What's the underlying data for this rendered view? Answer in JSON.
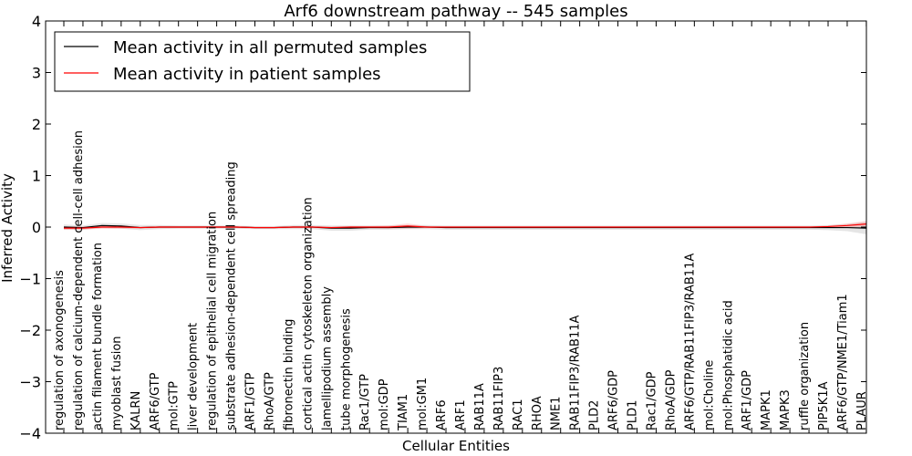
{
  "chart_data": {
    "type": "line",
    "title": "Arf6 downstream pathway -- 545 samples",
    "xlabel": "Cellular Entities",
    "ylabel": "Inferred Activity",
    "ylim": [
      -4,
      4
    ],
    "yticks": [
      -4,
      -3,
      -2,
      -1,
      0,
      1,
      2,
      3,
      4
    ],
    "ytick_labels": [
      "−4",
      "−3",
      "−2",
      "−1",
      "0",
      "1",
      "2",
      "3",
      "4"
    ],
    "legend_position": "top-left",
    "grid": false,
    "categories": [
      "regulation of axonogenesis",
      "regulation of calcium-dependent cell-cell adhesion",
      "actin filament bundle formation",
      "myoblast fusion",
      "KALRN",
      "ARF6/GTP",
      "mol:GTP",
      "liver development",
      "regulation of epithelial cell migration",
      "substrate adhesion-dependent cell spreading",
      "ARF1/GTP",
      "RhoA/GTP",
      "fibronectin binding",
      "cortical actin cytoskeleton organization",
      "lamellipodium assembly",
      "tube morphogenesis",
      "Rac1/GTP",
      "mol:GDP",
      "TIAM1",
      "mol:GM1",
      "ARF6",
      "ARF1",
      "RAB11A",
      "RAB11FIP3",
      "RAC1",
      "RHOA",
      "NME1",
      "RAB11FIP3/RAB11A",
      "PLD2",
      "ARF6/GDP",
      "PLD1",
      "Rac1/GDP",
      "RhoA/GDP",
      "ARF6/GTP/RAB11FIP3/RAB11A",
      "mol:Choline",
      "mol:Phosphatidic acid",
      "ARF1/GDP",
      "MAPK1",
      "MAPK3",
      "ruffle organization",
      "PIP5K1A",
      "ARF6/GTP/NME1/Tiam1",
      "PLAUR"
    ],
    "series": [
      {
        "name": "Mean activity in all permuted samples",
        "color": "#000000",
        "values": [
          0.0,
          -0.01,
          0.03,
          0.02,
          -0.01,
          0.0,
          0.0,
          0.0,
          0.0,
          0.0,
          -0.01,
          -0.01,
          0.0,
          0.0,
          -0.02,
          -0.02,
          -0.01,
          -0.01,
          0.0,
          0.0,
          -0.01,
          -0.01,
          -0.01,
          -0.01,
          -0.01,
          -0.01,
          -0.01,
          -0.01,
          -0.01,
          -0.01,
          -0.01,
          -0.01,
          -0.01,
          -0.01,
          -0.01,
          -0.01,
          -0.01,
          -0.01,
          -0.01,
          -0.01,
          -0.01,
          -0.01,
          -0.02
        ],
        "band": [
          0.05,
          0.04,
          0.05,
          0.05,
          0.05,
          0.04,
          0.03,
          0.03,
          0.03,
          0.03,
          0.03,
          0.03,
          0.04,
          0.04,
          0.05,
          0.05,
          0.04,
          0.04,
          0.04,
          0.04,
          0.04,
          0.04,
          0.04,
          0.04,
          0.04,
          0.04,
          0.04,
          0.04,
          0.04,
          0.04,
          0.04,
          0.04,
          0.04,
          0.04,
          0.04,
          0.04,
          0.04,
          0.04,
          0.04,
          0.04,
          0.05,
          0.07,
          0.12
        ]
      },
      {
        "name": "Mean activity in patient samples",
        "color": "#ff0000",
        "values": [
          -0.02,
          -0.02,
          0.0,
          0.0,
          -0.01,
          0.0,
          0.0,
          0.0,
          0.0,
          0.0,
          -0.01,
          -0.01,
          0.0,
          0.0,
          -0.01,
          0.0,
          0.0,
          0.0,
          0.02,
          0.0,
          0.0,
          0.0,
          0.0,
          0.0,
          0.0,
          0.0,
          0.0,
          0.0,
          0.0,
          0.0,
          0.0,
          0.0,
          0.0,
          0.0,
          0.0,
          0.0,
          0.0,
          0.0,
          0.0,
          0.0,
          0.01,
          0.03,
          0.06
        ],
        "band": [
          0.03,
          0.03,
          0.03,
          0.03,
          0.02,
          0.02,
          0.02,
          0.02,
          0.02,
          0.02,
          0.02,
          0.02,
          0.02,
          0.02,
          0.02,
          0.02,
          0.02,
          0.03,
          0.05,
          0.02,
          0.01,
          0.01,
          0.01,
          0.01,
          0.01,
          0.01,
          0.01,
          0.01,
          0.01,
          0.01,
          0.01,
          0.01,
          0.01,
          0.01,
          0.01,
          0.01,
          0.01,
          0.01,
          0.01,
          0.01,
          0.02,
          0.04,
          0.06
        ]
      }
    ]
  }
}
